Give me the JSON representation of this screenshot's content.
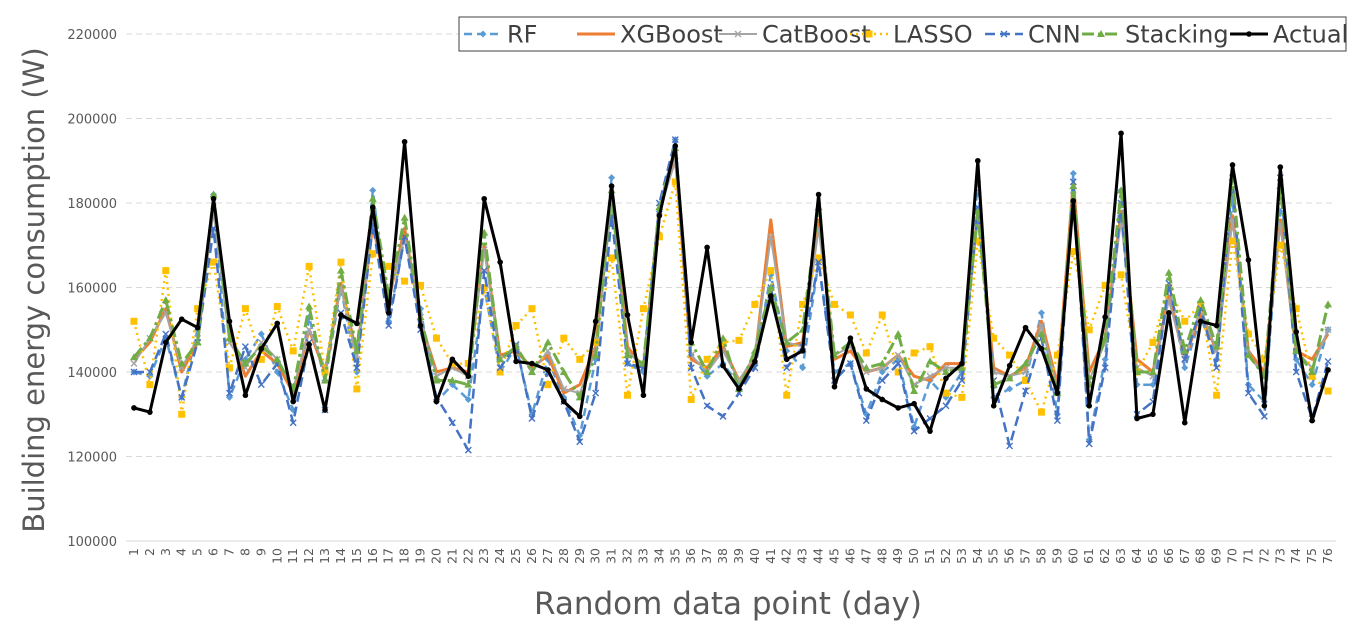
{
  "chart_data": {
    "type": "line",
    "title": "",
    "xlabel": "Random data point (day)",
    "ylabel": "Building energy consumption (W)",
    "ylim": [
      100000,
      220000
    ],
    "y_ticks": [
      "100000",
      "120000",
      "140000",
      "160000",
      "180000",
      "200000",
      "220000"
    ],
    "grid": "horizontal dashed",
    "legend_position": "top-right",
    "x": [
      1,
      2,
      3,
      4,
      5,
      6,
      7,
      8,
      9,
      10,
      11,
      12,
      13,
      14,
      15,
      16,
      17,
      18,
      19,
      20,
      21,
      22,
      23,
      24,
      25,
      26,
      27,
      28,
      29,
      30,
      31,
      32,
      33,
      34,
      35,
      36,
      37,
      38,
      39,
      40,
      41,
      42,
      43,
      44,
      45,
      46,
      47,
      48,
      49,
      50,
      51,
      52,
      53,
      54,
      55,
      56,
      57,
      58,
      59,
      60,
      61,
      62,
      63,
      64,
      65,
      66,
      67,
      68,
      69,
      70,
      71,
      72,
      73,
      74,
      75,
      76
    ],
    "series": [
      {
        "name": "RF",
        "color": "#5B9BD5",
        "dash": "8,5",
        "marker": "diamond",
        "width": 2.5,
        "values": [
          140000,
          139000,
          148000,
          134000,
          150000,
          182000,
          134000,
          143000,
          149000,
          140000,
          131000,
          153000,
          138000,
          160000,
          140000,
          183000,
          152000,
          172000,
          155000,
          133000,
          137000,
          133500,
          160000,
          140000,
          146000,
          130000,
          143000,
          134000,
          125000,
          143000,
          186000,
          142000,
          140000,
          178000,
          195000,
          144000,
          139000,
          142000,
          137000,
          142000,
          163000,
          145000,
          141000,
          166000,
          140000,
          142000,
          130000,
          140000,
          143000,
          127000,
          138000,
          134000,
          140000,
          185000,
          134000,
          136000,
          138000,
          154000,
          130000,
          187000,
          124000,
          143000,
          183000,
          137000,
          137000,
          160000,
          141000,
          153000,
          143000,
          181000,
          137000,
          133000,
          178000,
          143000,
          137000,
          150000
        ]
      },
      {
        "name": "XGBoost",
        "color": "#ED7D31",
        "dash": "",
        "marker": "none",
        "width": 3,
        "values": [
          143000,
          147000,
          155000,
          140000,
          147000,
          181000,
          150000,
          139000,
          145000,
          142000,
          135000,
          150000,
          140000,
          161000,
          144000,
          175000,
          157000,
          174000,
          152000,
          140000,
          141000,
          140000,
          170000,
          144000,
          145000,
          141000,
          144000,
          135000,
          137000,
          146000,
          182000,
          146000,
          141000,
          179000,
          191000,
          143000,
          141000,
          146000,
          138000,
          143000,
          176000,
          146000,
          147000,
          176000,
          143000,
          145000,
          140000,
          141000,
          144000,
          139000,
          138000,
          142000,
          142000,
          178000,
          141000,
          139000,
          141000,
          152000,
          137000,
          185000,
          140000,
          148000,
          178000,
          143000,
          140000,
          158000,
          143000,
          154000,
          145000,
          177000,
          145000,
          140000,
          176000,
          145000,
          143000,
          149000
        ]
      },
      {
        "name": "CatBoost",
        "color": "#A5A5A5",
        "dash": "",
        "marker": "cross",
        "width": 2,
        "values": [
          142000,
          148000,
          154000,
          141000,
          148000,
          178000,
          147000,
          141000,
          147000,
          143000,
          136000,
          150000,
          141000,
          160000,
          143000,
          176000,
          158000,
          172000,
          153000,
          139000,
          141000,
          139000,
          169000,
          143000,
          146000,
          140000,
          145000,
          136000,
          135000,
          145000,
          180000,
          145000,
          141000,
          178000,
          190000,
          144000,
          140000,
          145000,
          138000,
          144000,
          172000,
          147000,
          146000,
          174000,
          144000,
          146000,
          140000,
          141000,
          144000,
          137000,
          139000,
          141000,
          141000,
          176000,
          140000,
          139000,
          140000,
          151000,
          136000,
          183000,
          138000,
          147000,
          176000,
          141000,
          139000,
          157000,
          143000,
          155000,
          145000,
          176000,
          144000,
          139000,
          175000,
          145000,
          141000,
          150000
        ]
      },
      {
        "name": "LASSO",
        "color": "#FFC000",
        "dash": "2,4",
        "marker": "square",
        "width": 2.5,
        "values": [
          152000,
          137000,
          164000,
          130000,
          155000,
          166000,
          141000,
          155000,
          143000,
          155500,
          145000,
          165000,
          140000,
          166000,
          136000,
          168000,
          165000,
          161500,
          160500,
          148000,
          142000,
          142000,
          160000,
          140000,
          151000,
          155000,
          137000,
          148000,
          143000,
          147000,
          167000,
          134500,
          155000,
          172000,
          185000,
          133500,
          143000,
          147000,
          147500,
          156000,
          164000,
          134500,
          156000,
          167000,
          156000,
          153500,
          144500,
          153500,
          140000,
          144500,
          146000,
          135000,
          134000,
          171000,
          148000,
          144000,
          138000,
          130500,
          144000,
          168500,
          150000,
          160500,
          163000,
          140000,
          147000,
          160000,
          152000,
          156000,
          134500,
          171000,
          149000,
          143000,
          170000,
          155000,
          139000,
          135500
        ]
      },
      {
        "name": "CNN",
        "color": "#4472C4",
        "dash": "10,5",
        "marker": "x",
        "width": 2.5,
        "values": [
          140000,
          140000,
          149000,
          134000,
          147000,
          174000,
          135000,
          146000,
          137000,
          142000,
          128000,
          147000,
          131000,
          154000,
          141000,
          175000,
          151000,
          172000,
          150000,
          134000,
          128000,
          121500,
          164000,
          141000,
          146500,
          129000,
          140000,
          133000,
          123500,
          135000,
          177000,
          142000,
          141000,
          180000,
          195000,
          141000,
          132000,
          129500,
          135000,
          141000,
          160000,
          141000,
          146000,
          166000,
          138000,
          142000,
          128500,
          138000,
          142000,
          126000,
          129000,
          132000,
          138000,
          179000,
          138000,
          122500,
          135500,
          148000,
          128500,
          185000,
          123000,
          141000,
          180000,
          130000,
          133000,
          161000,
          143000,
          155000,
          141000,
          186000,
          135000,
          129500,
          186000,
          140000,
          129000,
          142500
        ]
      },
      {
        "name": "Stacking",
        "color": "#70AD47",
        "dash": "12,4,3,4",
        "marker": "triangle",
        "width": 3,
        "values": [
          143500,
          148000,
          157000,
          142000,
          147000,
          182000,
          148000,
          142000,
          146000,
          143000,
          136000,
          155500,
          138000,
          164000,
          145000,
          181000,
          158000,
          176500,
          153000,
          138000,
          138000,
          137000,
          173000,
          143000,
          146000,
          140000,
          147000,
          140000,
          134000,
          144000,
          183000,
          144000,
          142000,
          179000,
          193000,
          147000,
          140000,
          148000,
          136000,
          145000,
          160000,
          147000,
          150000,
          179000,
          144000,
          147000,
          141000,
          142000,
          149000,
          135500,
          142500,
          140000,
          141000,
          178000,
          137000,
          138500,
          142000,
          149000,
          135000,
          184000,
          137000,
          148000,
          183000,
          140000,
          140000,
          163500,
          145000,
          157000,
          146000,
          186000,
          144000,
          139000,
          184000,
          145000,
          140000,
          156000
        ]
      },
      {
        "name": "Actual",
        "color": "#000000",
        "dash": "",
        "marker": "circle",
        "width": 3,
        "values": [
          131500,
          130500,
          147000,
          152500,
          150500,
          181000,
          152000,
          134500,
          145500,
          151500,
          133000,
          146500,
          131000,
          153500,
          151500,
          179000,
          154000,
          194500,
          151000,
          133000,
          143000,
          139000,
          181000,
          166000,
          142500,
          142000,
          140500,
          133000,
          129500,
          152000,
          184000,
          153500,
          134500,
          177000,
          193500,
          147000,
          169500,
          141500,
          136000,
          142500,
          158000,
          143000,
          145000,
          182000,
          136500,
          148000,
          136000,
          133500,
          131500,
          132500,
          126000,
          138500,
          142000,
          190000,
          132000,
          141500,
          150500,
          145500,
          135000,
          180500,
          132000,
          153000,
          196500,
          129000,
          130000,
          154000,
          128000,
          152000,
          151000,
          189000,
          166500,
          132000,
          188500,
          149500,
          128500,
          140500
        ]
      }
    ]
  }
}
